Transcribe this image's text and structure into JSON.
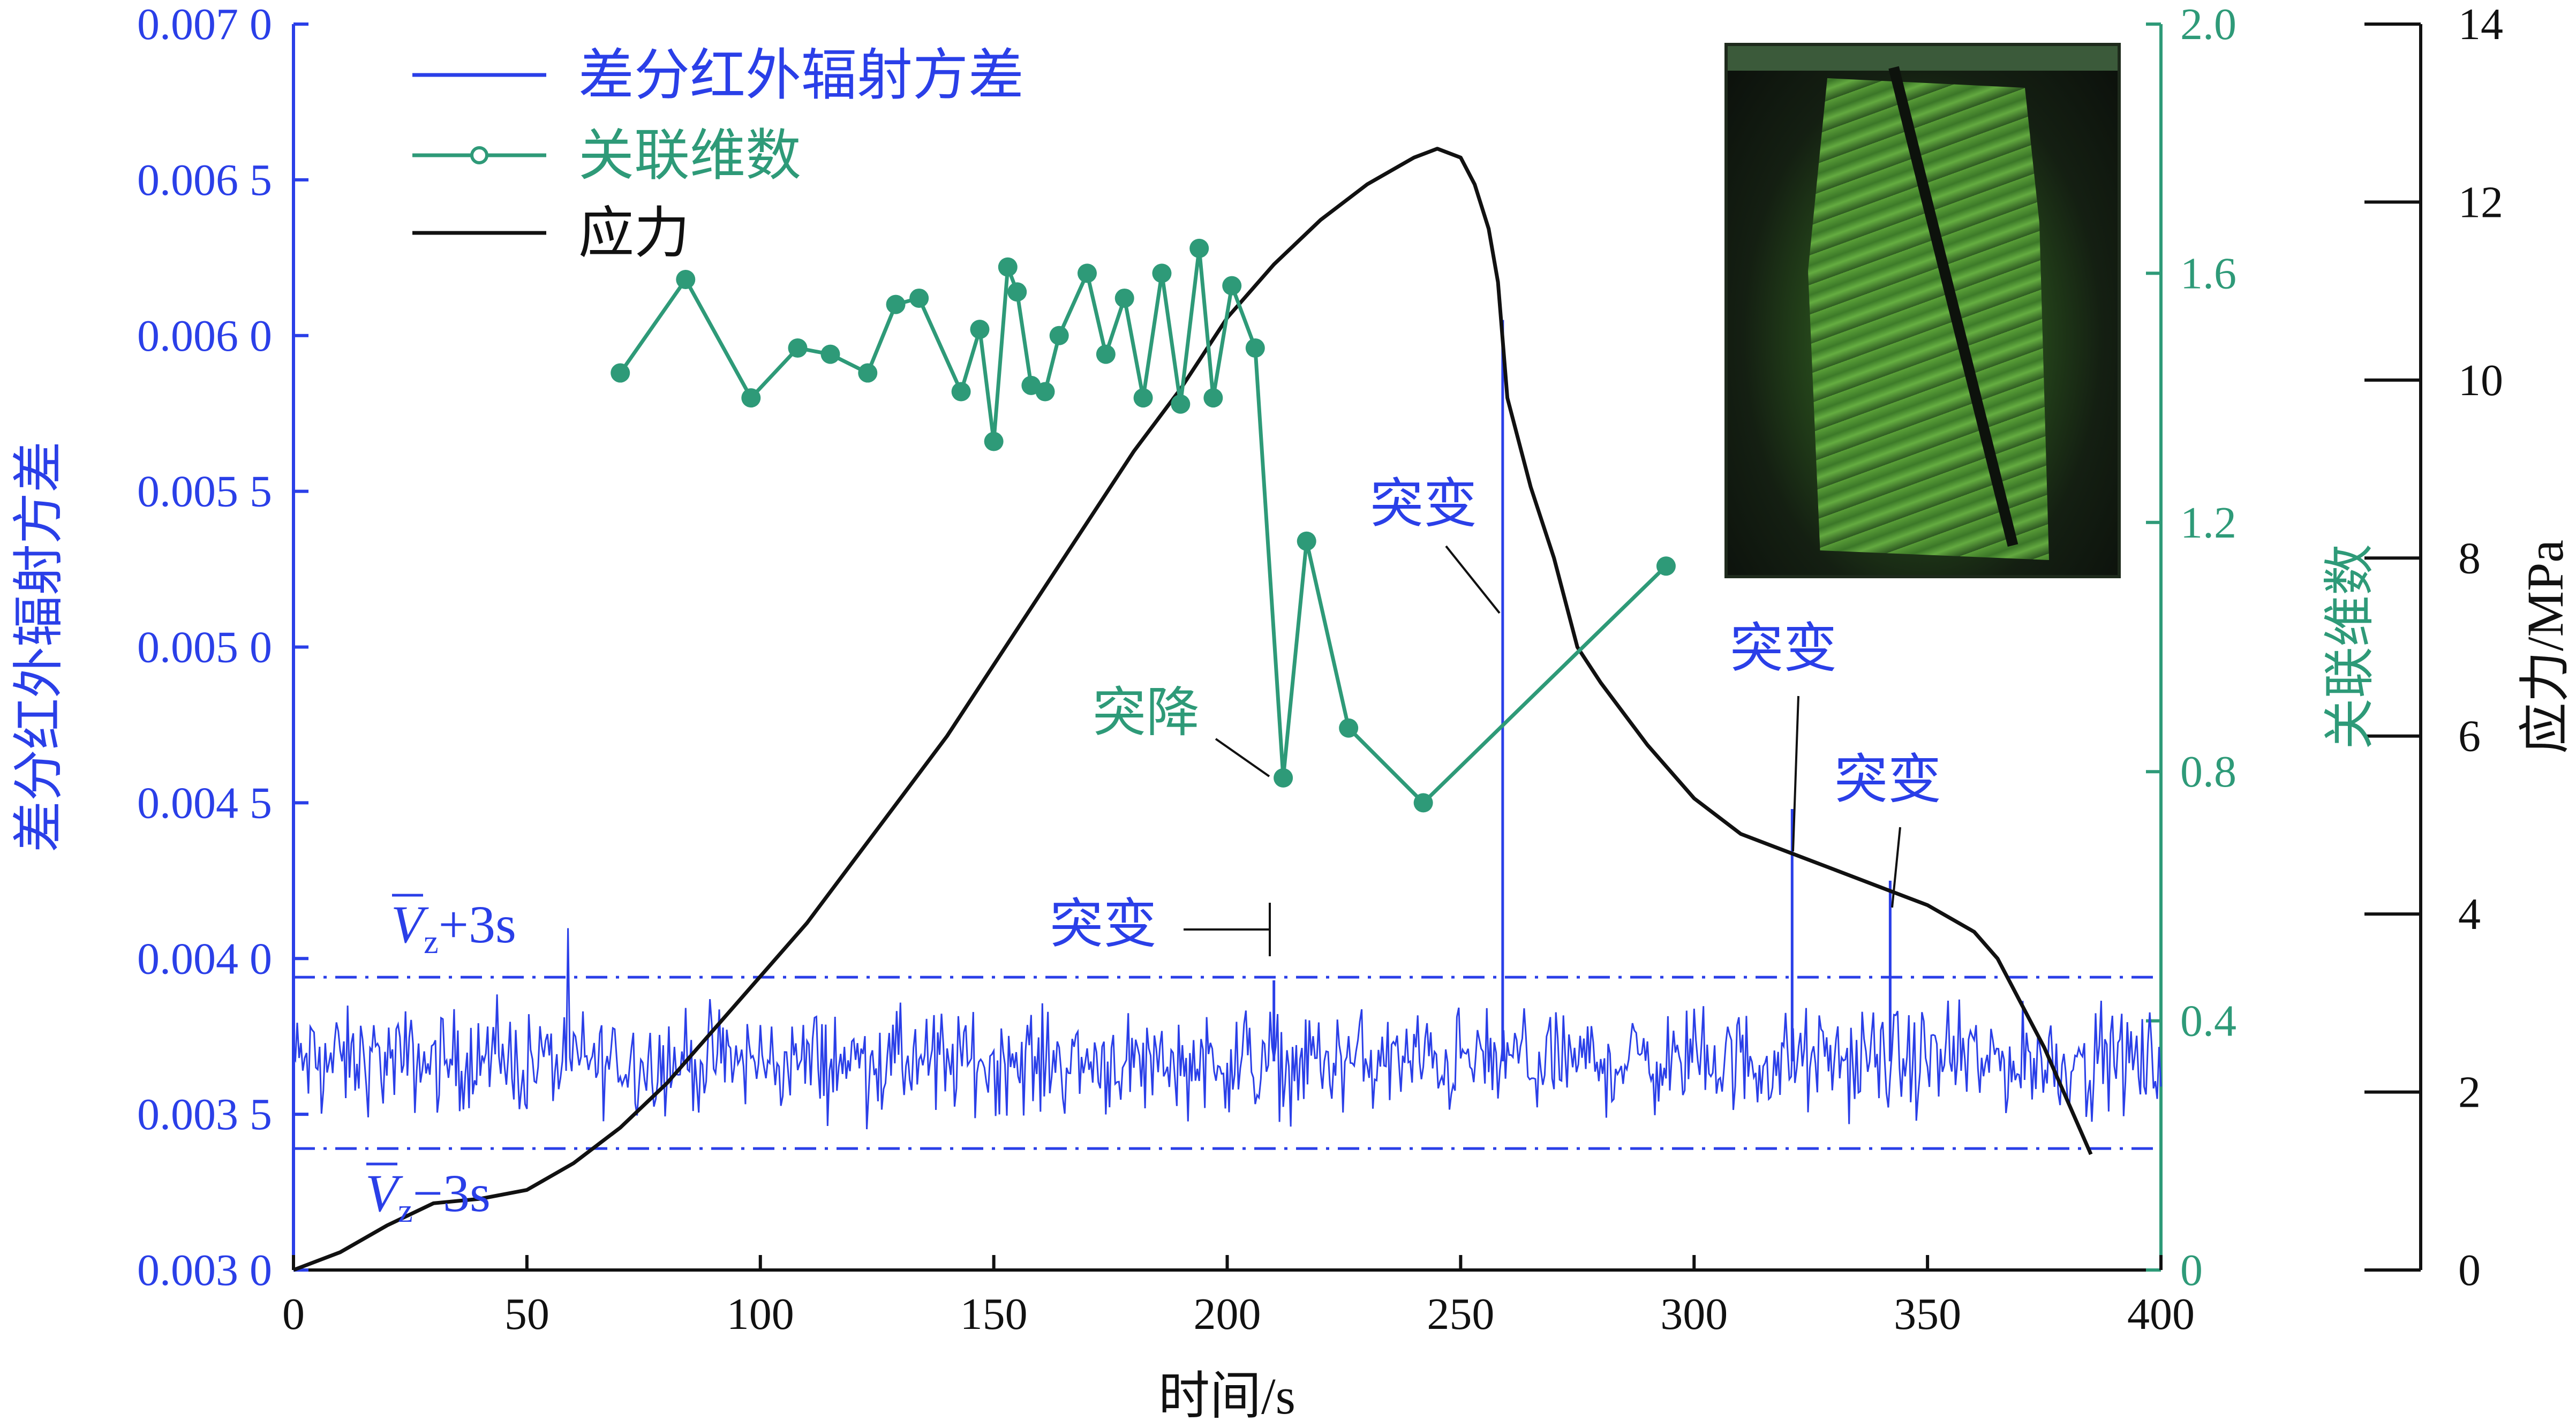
{
  "chart_data": {
    "type": "line",
    "xlabel": "时间/s",
    "xlim": [
      0,
      400
    ],
    "x_ticks": [
      "0",
      "50",
      "100",
      "150",
      "200",
      "250",
      "300",
      "350",
      "400"
    ],
    "y_left": {
      "label": "差分红外辐射方差",
      "lim": [
        0.003,
        0.007
      ],
      "ticks": [
        "0.003 0",
        "0.003 5",
        "0.004 0",
        "0.004 5",
        "0.005 0",
        "0.005 5",
        "0.006 0",
        "0.006 5",
        "0.007 0"
      ],
      "color": "#2A3FE8"
    },
    "y_mid": {
      "label": "关联维数",
      "lim": [
        0,
        2.0
      ],
      "ticks": [
        "0",
        "0.4",
        "0.8",
        "1.2",
        "1.6",
        "2.0"
      ],
      "color": "#2E9A78"
    },
    "y_right": {
      "label": "应力/MPa",
      "lim": [
        0,
        14
      ],
      "ticks": [
        "0",
        "2",
        "4",
        "6",
        "8",
        "10",
        "12",
        "14"
      ],
      "color": "#111111"
    },
    "legend": [
      "差分红外辐射方差",
      "关联维数",
      "应力"
    ],
    "threshold_lines": {
      "upper": {
        "label_main": "V",
        "label_sub": "z",
        "label_suffix": "+3s",
        "value": 0.00394
      },
      "lower": {
        "label_main": "V",
        "label_sub": "z",
        "label_suffix": "−3s",
        "value": 0.00339
      }
    },
    "variance_series": {
      "name": "差分红外辐射方差",
      "mean": 0.00367,
      "spikes": [
        {
          "x": 210,
          "y": 0.00393
        },
        {
          "x": 259,
          "y": 0.00605
        },
        {
          "x": 321,
          "y": 0.00448
        },
        {
          "x": 342,
          "y": 0.00425
        }
      ]
    },
    "correlation_series": {
      "name": "关联维数",
      "x": [
        70,
        84,
        98,
        108,
        115,
        123,
        129,
        134,
        143,
        147,
        150,
        153,
        155,
        158,
        161,
        164,
        170,
        174,
        178,
        182,
        186,
        190,
        194,
        197,
        201,
        206,
        212,
        217,
        226,
        242,
        294
      ],
      "y": [
        1.44,
        1.59,
        1.4,
        1.48,
        1.47,
        1.44,
        1.55,
        1.56,
        1.41,
        1.51,
        1.33,
        1.61,
        1.57,
        1.42,
        1.41,
        1.5,
        1.6,
        1.47,
        1.56,
        1.4,
        1.6,
        1.39,
        1.64,
        1.4,
        1.58,
        1.48,
        0.79,
        1.17,
        0.87,
        0.75,
        1.13
      ]
    },
    "stress_series": {
      "name": "应力",
      "x": [
        0,
        10,
        20,
        30,
        40,
        50,
        60,
        70,
        80,
        90,
        100,
        110,
        120,
        130,
        140,
        150,
        160,
        170,
        180,
        190,
        200,
        210,
        220,
        230,
        240,
        245,
        250,
        253,
        256,
        258,
        260,
        265,
        270,
        275,
        280,
        290,
        300,
        310,
        320,
        330,
        340,
        350,
        360,
        365,
        370,
        375,
        380,
        385
      ],
      "y": [
        0,
        0.2,
        0.5,
        0.75,
        0.8,
        0.9,
        1.2,
        1.6,
        2.1,
        2.7,
        3.3,
        3.9,
        4.6,
        5.3,
        6.0,
        6.8,
        7.6,
        8.4,
        9.2,
        9.9,
        10.7,
        11.3,
        11.8,
        12.2,
        12.5,
        12.6,
        12.5,
        12.2,
        11.7,
        11.1,
        9.8,
        8.8,
        8.0,
        7.0,
        6.6,
        5.9,
        5.3,
        4.9,
        4.7,
        4.5,
        4.3,
        4.1,
        3.8,
        3.5,
        3.0,
        2.5,
        1.9,
        1.3
      ]
    },
    "annotations": [
      {
        "text": "突变",
        "series": "variance",
        "x": 210
      },
      {
        "text": "突变",
        "series": "variance",
        "x": 259
      },
      {
        "text": "突变",
        "series": "variance",
        "x": 321
      },
      {
        "text": "突变",
        "series": "variance",
        "x": 342
      },
      {
        "text": "突降",
        "series": "correlation",
        "x": 212
      }
    ],
    "colors": {
      "variance": "#2A3FE8",
      "correlation": "#2E9A78",
      "stress": "#111111"
    }
  }
}
